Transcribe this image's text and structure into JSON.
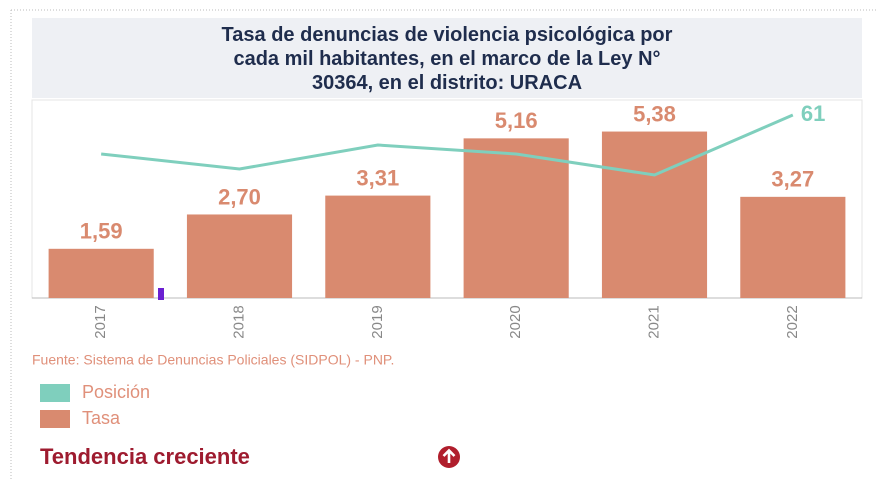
{
  "chart_data": {
    "type": "bar_line",
    "title": "Tasa de denuncias de violencia psicológica por cada mil habitantes, en el marco de la Ley N° 30364, en el distrito: URACA",
    "categories": [
      "2017",
      "2018",
      "2019",
      "2020",
      "2021",
      "2022"
    ],
    "series": [
      {
        "name": "Tasa",
        "type": "bar",
        "color": "#d98a6f",
        "values": [
          1.59,
          2.7,
          3.31,
          5.16,
          5.38,
          3.27
        ],
        "value_labels": [
          "1,59",
          "2,70",
          "3,31",
          "5,16",
          "5,38",
          "3,27"
        ]
      },
      {
        "name": "Posición",
        "type": "line",
        "axis": "y2",
        "color": "#7fcfbd",
        "values": [
          48,
          43,
          51,
          48,
          41,
          61
        ],
        "value_labels": [
          null,
          null,
          null,
          null,
          null,
          "61"
        ]
      }
    ],
    "ylim": [
      0,
      6.4
    ],
    "y2lim": [
      0,
      66
    ],
    "source": "Fuente: Sistema de Denuncias Policiales (SIDPOL) - PNP.",
    "trend": "Tendencia creciente"
  }
}
